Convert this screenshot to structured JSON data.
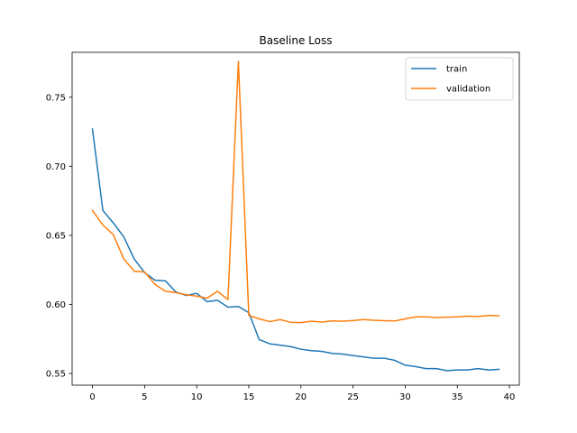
{
  "chart_data": {
    "type": "line",
    "title": "Baseline Loss",
    "xlabel": "",
    "ylabel": "",
    "xlim": [
      -1.95,
      40.95
    ],
    "ylim": [
      0.5415,
      0.7825
    ],
    "xticks": [
      0,
      5,
      10,
      15,
      20,
      25,
      30,
      35,
      40
    ],
    "xtick_labels": [
      "0",
      "5",
      "10",
      "15",
      "20",
      "25",
      "30",
      "35",
      "40"
    ],
    "yticks": [
      0.55,
      0.6,
      0.65,
      0.7,
      0.75
    ],
    "ytick_labels": [
      "0.55",
      "0.60",
      "0.65",
      "0.70",
      "0.75"
    ],
    "grid": false,
    "legend_position": "top-right",
    "x": [
      0,
      1,
      2,
      3,
      4,
      5,
      6,
      7,
      8,
      9,
      10,
      11,
      12,
      13,
      14,
      15,
      16,
      17,
      18,
      19,
      20,
      21,
      22,
      23,
      24,
      25,
      26,
      27,
      28,
      29,
      30,
      31,
      32,
      33,
      34,
      35,
      36,
      37,
      38,
      39
    ],
    "series": [
      {
        "name": "train",
        "color": "#1f77b4",
        "values": [
          0.727,
          0.668,
          0.659,
          0.649,
          0.633,
          0.623,
          0.6175,
          0.617,
          0.609,
          0.6065,
          0.608,
          0.602,
          0.603,
          0.598,
          0.5985,
          0.594,
          0.5745,
          0.5715,
          0.5705,
          0.5695,
          0.5675,
          0.5665,
          0.566,
          0.5645,
          0.564,
          0.563,
          0.562,
          0.561,
          0.561,
          0.5595,
          0.556,
          0.555,
          0.5535,
          0.5535,
          0.552,
          0.5525,
          0.5525,
          0.5535,
          0.5525,
          0.553
        ]
      },
      {
        "name": "validation",
        "color": "#ff7f0e",
        "values": [
          0.668,
          0.6575,
          0.6505,
          0.633,
          0.624,
          0.6235,
          0.6145,
          0.6095,
          0.6085,
          0.607,
          0.606,
          0.6045,
          0.6095,
          0.6035,
          0.776,
          0.592,
          0.5895,
          0.5875,
          0.589,
          0.587,
          0.5868,
          0.5878,
          0.5872,
          0.588,
          0.5878,
          0.5883,
          0.589,
          0.5885,
          0.5882,
          0.588,
          0.5895,
          0.591,
          0.591,
          0.5905,
          0.5907,
          0.591,
          0.5915,
          0.5912,
          0.592,
          0.5917
        ]
      }
    ]
  }
}
